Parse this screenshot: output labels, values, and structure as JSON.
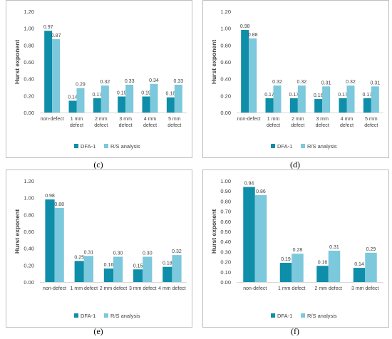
{
  "colors": {
    "dfa": "#0E8EA8",
    "rs": "#7CC8DC",
    "axis_text": "#404040",
    "frame": "#BFBFBF",
    "baseline": "#D9D9D9"
  },
  "charts": [
    {
      "caption": "(c)",
      "chart_data": {
        "type": "bar",
        "ylabel": "Hurst exponent",
        "ylim": [
          0,
          1.2
        ],
        "yticks": [
          "0.00",
          "0.20",
          "0.40",
          "0.60",
          "0.80",
          "1.00",
          "1.20"
        ],
        "categories": [
          [
            "non-defect"
          ],
          [
            "1 mm",
            "defect"
          ],
          [
            "2 mm",
            "defect"
          ],
          [
            "3 mm",
            "defect"
          ],
          [
            "4 mm",
            "defect"
          ],
          [
            "5 mm",
            "defect"
          ]
        ],
        "series": [
          {
            "name": "DFA-1",
            "values": [
              0.97,
              0.14,
              0.17,
              0.19,
              0.19,
              0.18
            ],
            "labels": [
              "0.97",
              "0.14",
              "0.17",
              "0.19",
              "0.19",
              "0.18"
            ]
          },
          {
            "name": "R/S analysis",
            "values": [
              0.87,
              0.29,
              0.32,
              0.33,
              0.34,
              0.33
            ],
            "labels": [
              "0.87",
              "0.29",
              "0.32",
              "0.33",
              "0.34",
              "0.33"
            ]
          }
        ],
        "legend": "bottom"
      }
    },
    {
      "caption": "(d)",
      "chart_data": {
        "type": "bar",
        "ylabel": "Hurst exponent",
        "ylim": [
          0,
          1.2
        ],
        "yticks": [
          "0.00",
          "0.20",
          "0.40",
          "0.60",
          "0.80",
          "1.00",
          "1.20"
        ],
        "categories": [
          [
            "non-defect"
          ],
          [
            "1 mm",
            "defect"
          ],
          [
            "2 mm",
            "defect"
          ],
          [
            "3 mm",
            "defect"
          ],
          [
            "4 mm",
            "defect"
          ],
          [
            "5 mm",
            "defect"
          ]
        ],
        "series": [
          {
            "name": "DFA-1",
            "values": [
              0.98,
              0.17,
              0.17,
              0.16,
              0.17,
              0.17
            ],
            "labels": [
              "0.98",
              "0.17",
              "0.17",
              "0.16",
              "0.17",
              "0.17"
            ]
          },
          {
            "name": "R/S analysis",
            "values": [
              0.88,
              0.32,
              0.32,
              0.31,
              0.32,
              0.31
            ],
            "labels": [
              "0.88",
              "0.32",
              "0.32",
              "0.31",
              "0.32",
              "0.31"
            ]
          }
        ],
        "legend": "bottom"
      }
    },
    {
      "caption": "(e)",
      "chart_data": {
        "type": "bar",
        "ylabel": "Hurst exponent",
        "ylim": [
          0,
          1.2
        ],
        "yticks": [
          "0.00",
          "0.20",
          "0.40",
          "0.60",
          "0.80",
          "1.00",
          "1.20"
        ],
        "categories": [
          [
            "non-defect"
          ],
          [
            "1 mm defect"
          ],
          [
            "2 mm defect"
          ],
          [
            "3 mm defect"
          ],
          [
            "4 mm defect"
          ]
        ],
        "series": [
          {
            "name": "DFA-1",
            "values": [
              0.98,
              0.25,
              0.16,
              0.15,
              0.18
            ],
            "labels": [
              "0.98",
              "0.25",
              "0.16",
              "0.15",
              "0.18"
            ]
          },
          {
            "name": "R/S analysis",
            "values": [
              0.88,
              0.31,
              0.3,
              0.3,
              0.32
            ],
            "labels": [
              "0.88",
              "0.31",
              "0.30",
              "0.30",
              "0.32"
            ]
          }
        ],
        "legend": "bottom"
      }
    },
    {
      "caption": "(f)",
      "chart_data": {
        "type": "bar",
        "ylabel": "Hurst exponent",
        "ylim": [
          0,
          1.0
        ],
        "yticks": [
          "0.00",
          "0.10",
          "0.20",
          "0.30",
          "0.40",
          "0.50",
          "0.60",
          "0.70",
          "0.80",
          "0.90",
          "1.00"
        ],
        "categories": [
          [
            "non-defect"
          ],
          [
            "1 mm defect"
          ],
          [
            "2 mm defect"
          ],
          [
            "3 mm defect"
          ]
        ],
        "series": [
          {
            "name": "DFA-1",
            "values": [
              0.94,
              0.19,
              0.16,
              0.14
            ],
            "labels": [
              "0.94",
              "0.19",
              "0.16",
              "0.14"
            ]
          },
          {
            "name": "R/S analysis",
            "values": [
              0.86,
              0.28,
              0.31,
              0.29
            ],
            "labels": [
              "0.86",
              "0.28",
              "0.31",
              "0.29"
            ]
          }
        ],
        "legend": "bottom"
      }
    }
  ]
}
